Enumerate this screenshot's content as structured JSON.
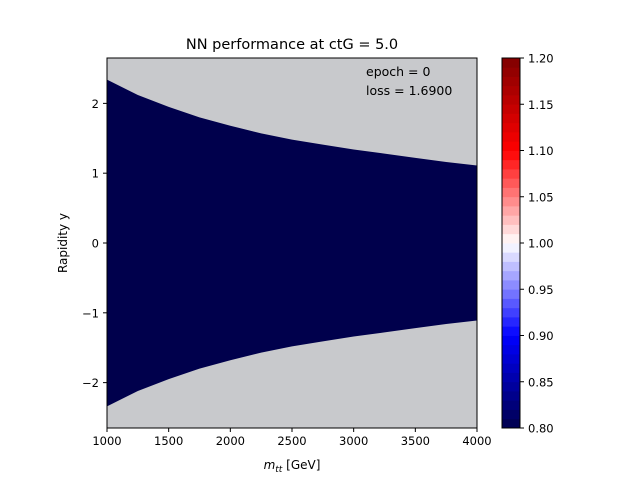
{
  "chart_data": {
    "type": "heatmap",
    "title": "NN performance at ctG = 5.0",
    "xlabel_main": "m",
    "xlabel_sub": "tt",
    "xlabel_unit": " [GeV]",
    "ylabel": "Rapidity y",
    "xlim": [
      1000,
      4000
    ],
    "ylim": [
      -2.65,
      2.65
    ],
    "x_ticks": [
      {
        "value": 1000,
        "label": "1000"
      },
      {
        "value": 1500,
        "label": "1500"
      },
      {
        "value": 2000,
        "label": "2000"
      },
      {
        "value": 2500,
        "label": "2500"
      },
      {
        "value": 3000,
        "label": "3000"
      },
      {
        "value": 3500,
        "label": "3500"
      },
      {
        "value": 4000,
        "label": "4000"
      }
    ],
    "y_ticks": [
      {
        "value": 2,
        "label": "2"
      },
      {
        "value": 1,
        "label": "1"
      },
      {
        "value": 0,
        "label": "0"
      },
      {
        "value": -1,
        "label": "−1"
      },
      {
        "value": -2,
        "label": "−2"
      }
    ],
    "kinematic_boundary": {
      "m_tt": [
        1000,
        1250,
        1500,
        1750,
        2000,
        2250,
        2500,
        2750,
        3000,
        3250,
        3500,
        3750,
        4000
      ],
      "y_max": [
        2.34,
        2.12,
        1.95,
        1.8,
        1.68,
        1.57,
        1.48,
        1.41,
        1.34,
        1.28,
        1.22,
        1.16,
        1.11
      ]
    },
    "region_value": 0.8,
    "colors": {
      "background": "#c8c9cc",
      "region": "#00004c"
    },
    "annotations": [
      "epoch = 0",
      "loss = 1.6900"
    ],
    "colorbar": {
      "range": [
        0.8,
        1.2
      ],
      "ticks": [
        {
          "value": 1.2,
          "label": "1.20"
        },
        {
          "value": 1.15,
          "label": "1.15"
        },
        {
          "value": 1.1,
          "label": "1.10"
        },
        {
          "value": 1.05,
          "label": "1.05"
        },
        {
          "value": 1.0,
          "label": "1.00"
        },
        {
          "value": 0.95,
          "label": "0.95"
        },
        {
          "value": 0.9,
          "label": "0.90"
        },
        {
          "value": 0.85,
          "label": "0.85"
        },
        {
          "value": 0.8,
          "label": "0.80"
        }
      ],
      "n_levels": 40,
      "colormap": "seismic"
    }
  }
}
